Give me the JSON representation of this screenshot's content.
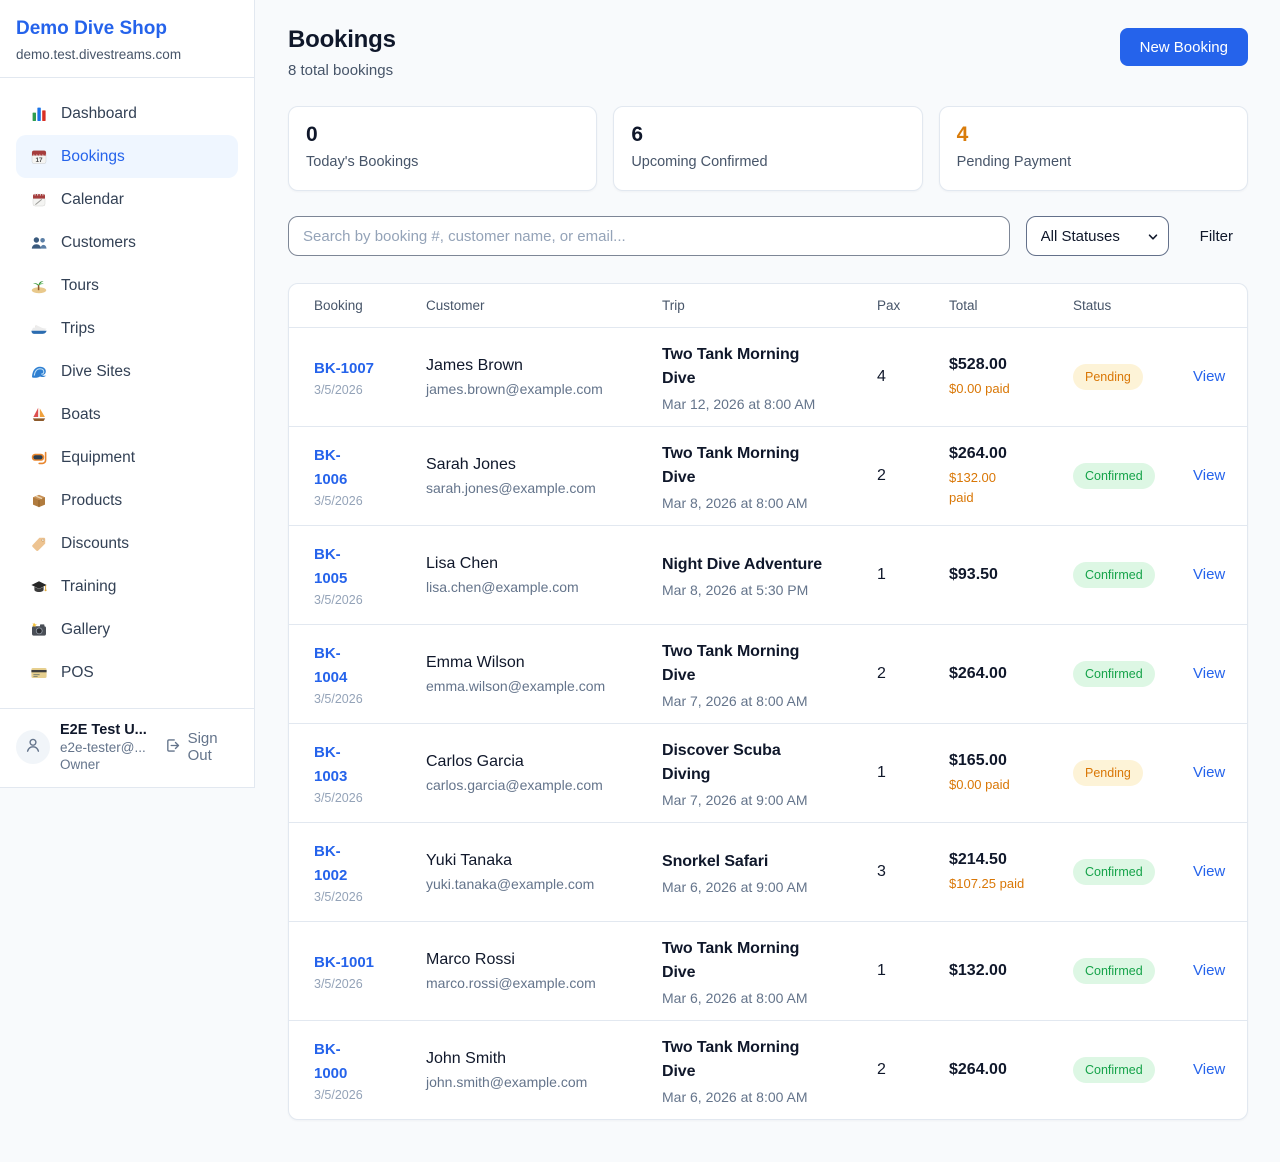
{
  "sidebar": {
    "brand": {
      "name": "Demo Dive Shop",
      "domain": "demo.test.divestreams.com"
    },
    "items": [
      {
        "label": "Dashboard",
        "icon": "bar-chart",
        "active": false
      },
      {
        "label": "Bookings",
        "icon": "calendar-17",
        "active": true
      },
      {
        "label": "Calendar",
        "icon": "calendar-pad",
        "active": false
      },
      {
        "label": "Customers",
        "icon": "users",
        "active": false
      },
      {
        "label": "Tours",
        "icon": "island",
        "active": false
      },
      {
        "label": "Trips",
        "icon": "speedboat",
        "active": false
      },
      {
        "label": "Dive Sites",
        "icon": "wave",
        "active": false
      },
      {
        "label": "Boats",
        "icon": "sailboat",
        "active": false
      },
      {
        "label": "Equipment",
        "icon": "diving-mask",
        "active": false
      },
      {
        "label": "Products",
        "icon": "package-box",
        "active": false
      },
      {
        "label": "Discounts",
        "icon": "price-tag",
        "active": false
      },
      {
        "label": "Training",
        "icon": "graduation-cap",
        "active": false
      },
      {
        "label": "Gallery",
        "icon": "camera-flash",
        "active": false
      },
      {
        "label": "POS",
        "icon": "credit-card",
        "active": false
      }
    ],
    "user": {
      "name": "E2E Test U...",
      "email": "e2e-tester@...",
      "role": "Owner",
      "sign_out_label": "Sign Out"
    }
  },
  "header": {
    "title": "Bookings",
    "subtitle": "8 total bookings",
    "new_booking_label": "New Booking"
  },
  "stats": [
    {
      "value": "0",
      "label": "Today's Bookings",
      "color": "#0f172a"
    },
    {
      "value": "6",
      "label": "Upcoming Confirmed",
      "color": "#0f172a"
    },
    {
      "value": "4",
      "label": "Pending Payment",
      "color": "#d97c0b"
    }
  ],
  "filters": {
    "search_placeholder": "Search by booking #, customer name, or email...",
    "status_select": "All Statuses",
    "filter_label": "Filter"
  },
  "table": {
    "columns": [
      "Booking",
      "Customer",
      "Trip",
      "Pax",
      "Total",
      "Status"
    ],
    "rows": [
      {
        "booking_display": "BK-1007",
        "date": "3/5/2026",
        "customer": "James Brown",
        "email": "james.brown@example.com",
        "trip": "Two Tank Morning\nDive",
        "trip_datetime": "Mar 12, 2026 at 8:00 AM",
        "pax": "4",
        "total": "$528.00",
        "paid": "$0.00 paid",
        "status": "Pending",
        "action": "View"
      },
      {
        "booking_display": "BK-\n1006",
        "date": "3/5/2026",
        "customer": "Sarah Jones",
        "email": "sarah.jones@example.com",
        "trip": "Two Tank Morning\nDive",
        "trip_datetime": "Mar 8, 2026 at 8:00 AM",
        "pax": "2",
        "total": "$264.00",
        "paid": "$132.00\npaid",
        "status": "Confirmed",
        "action": "View"
      },
      {
        "booking_display": "BK-\n1005",
        "date": "3/5/2026",
        "customer": "Lisa Chen",
        "email": "lisa.chen@example.com",
        "trip": "Night Dive Adventure",
        "trip_datetime": "Mar 8, 2026 at 5:30 PM",
        "pax": "1",
        "total": "$93.50",
        "paid": "",
        "status": "Confirmed",
        "action": "View"
      },
      {
        "booking_display": "BK-\n1004",
        "date": "3/5/2026",
        "customer": "Emma Wilson",
        "email": "emma.wilson@example.com",
        "trip": "Two Tank Morning\nDive",
        "trip_datetime": "Mar 7, 2026 at 8:00 AM",
        "pax": "2",
        "total": "$264.00",
        "paid": "",
        "status": "Confirmed",
        "action": "View"
      },
      {
        "booking_display": "BK-\n1003",
        "date": "3/5/2026",
        "customer": "Carlos Garcia",
        "email": "carlos.garcia@example.com",
        "trip": "Discover Scuba\nDiving",
        "trip_datetime": "Mar 7, 2026 at 9:00 AM",
        "pax": "1",
        "total": "$165.00",
        "paid": "$0.00 paid",
        "status": "Pending",
        "action": "View"
      },
      {
        "booking_display": "BK-\n1002",
        "date": "3/5/2026",
        "customer": "Yuki Tanaka",
        "email": "yuki.tanaka@example.com",
        "trip": "Snorkel Safari",
        "trip_datetime": "Mar 6, 2026 at 9:00 AM",
        "pax": "3",
        "total": "$214.50",
        "paid": "$107.25 paid",
        "status": "Confirmed",
        "action": "View"
      },
      {
        "booking_display": "BK-1001",
        "date": "3/5/2026",
        "customer": "Marco Rossi",
        "email": "marco.rossi@example.com",
        "trip": "Two Tank Morning\nDive",
        "trip_datetime": "Mar 6, 2026 at 8:00 AM",
        "pax": "1",
        "total": "$132.00",
        "paid": "",
        "status": "Confirmed",
        "action": "View"
      },
      {
        "booking_display": "BK-\n1000",
        "date": "3/5/2026",
        "customer": "John Smith",
        "email": "john.smith@example.com",
        "trip": "Two Tank Morning\nDive",
        "trip_datetime": "Mar 6, 2026 at 8:00 AM",
        "pax": "2",
        "total": "$264.00",
        "paid": "",
        "status": "Confirmed",
        "action": "View"
      }
    ]
  },
  "colors": {
    "accent_blue": "#2563eb",
    "pending_text": "#d97706",
    "pending_bg": "#fdf3d7",
    "confirmed_text": "#16a34a",
    "confirmed_bg": "#ddf7e4",
    "page_bg": "#f8fafc",
    "border": "#e2e8f0"
  }
}
